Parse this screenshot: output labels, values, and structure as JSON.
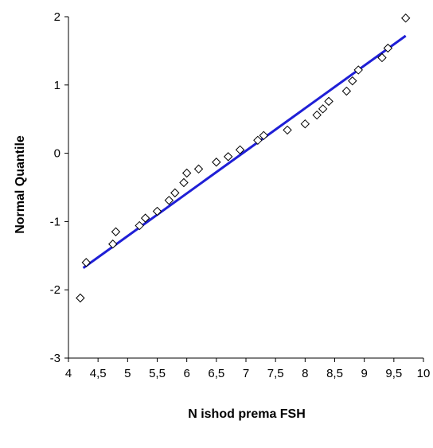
{
  "chart_data": {
    "type": "scatter",
    "title": "",
    "xlabel": "N ishod prema FSH",
    "ylabel": "Normal Quantile",
    "xlim": [
      4,
      10
    ],
    "ylim": [
      -3,
      2
    ],
    "x_ticks": [
      "4",
      "4,5",
      "5",
      "5,5",
      "6",
      "6,5",
      "7",
      "7,5",
      "8",
      "8,5",
      "9",
      "9,5",
      "10"
    ],
    "y_ticks": [
      "-3",
      "-2",
      "-1",
      "0",
      "1",
      "2"
    ],
    "grid": false,
    "legend": "none",
    "colors": {
      "line": "#1f1fd6",
      "marker": "#000000"
    },
    "points": [
      {
        "x": 4.2,
        "y": -2.12
      },
      {
        "x": 4.3,
        "y": -1.6
      },
      {
        "x": 4.75,
        "y": -1.33
      },
      {
        "x": 4.8,
        "y": -1.15
      },
      {
        "x": 5.2,
        "y": -1.06
      },
      {
        "x": 5.3,
        "y": -0.95
      },
      {
        "x": 5.5,
        "y": -0.85
      },
      {
        "x": 5.7,
        "y": -0.69
      },
      {
        "x": 5.8,
        "y": -0.58
      },
      {
        "x": 5.95,
        "y": -0.43
      },
      {
        "x": 6.0,
        "y": -0.29
      },
      {
        "x": 6.2,
        "y": -0.23
      },
      {
        "x": 6.5,
        "y": -0.13
      },
      {
        "x": 6.7,
        "y": -0.05
      },
      {
        "x": 6.9,
        "y": 0.05
      },
      {
        "x": 7.2,
        "y": 0.19
      },
      {
        "x": 7.3,
        "y": 0.26
      },
      {
        "x": 7.7,
        "y": 0.34
      },
      {
        "x": 8.0,
        "y": 0.43
      },
      {
        "x": 8.2,
        "y": 0.56
      },
      {
        "x": 8.3,
        "y": 0.65
      },
      {
        "x": 8.4,
        "y": 0.76
      },
      {
        "x": 8.7,
        "y": 0.91
      },
      {
        "x": 8.8,
        "y": 1.06
      },
      {
        "x": 8.9,
        "y": 1.22
      },
      {
        "x": 9.3,
        "y": 1.4
      },
      {
        "x": 9.4,
        "y": 1.54
      },
      {
        "x": 9.7,
        "y": 1.98
      }
    ],
    "fit_line": {
      "x": [
        4.25,
        9.7
      ],
      "y": [
        -1.68,
        1.72
      ]
    }
  }
}
